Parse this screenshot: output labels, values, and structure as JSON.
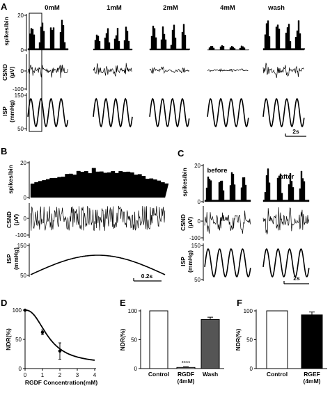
{
  "chart_data": [
    {
      "panel": "A",
      "type": "line",
      "conditions": [
        "0mM",
        "1mM",
        "2mM",
        "4mM",
        "wash"
      ],
      "spike_heights": [
        18,
        14,
        15,
        3,
        19
      ],
      "csnd_amplitudes": [
        55,
        50,
        25,
        10,
        55
      ],
      "rows": [
        {
          "ylabel": "spikes/bin",
          "ticks": [
            "20",
            "0"
          ],
          "ylim": [
            0,
            20
          ]
        },
        {
          "ylabel": "CSND\n(μV)",
          "ticks": [
            "0",
            "-100"
          ],
          "ylim": [
            -100,
            100
          ]
        },
        {
          "ylabel": "ISP\n(mmHg)",
          "ticks": [
            "150",
            "50"
          ],
          "ylim": [
            50,
            150
          ]
        }
      ],
      "scalebar": "2s"
    },
    {
      "panel": "B",
      "type": "line",
      "rows": [
        {
          "ylabel": "spikes/bin",
          "ticks": [
            "20",
            "0"
          ],
          "ylim": [
            0,
            20
          ]
        },
        {
          "ylabel": "CSND\n(μV)",
          "ticks": [
            "0",
            "-100"
          ],
          "ylim": [
            -100,
            100
          ]
        },
        {
          "ylabel": "ISP\n(mmHg)",
          "ticks": [
            "150",
            "50"
          ],
          "ylim": [
            50,
            150
          ]
        }
      ],
      "scalebar": "0.2s"
    },
    {
      "panel": "C",
      "type": "line",
      "conditions": [
        "before",
        "after"
      ],
      "rows": [
        {
          "ylabel": "spikes/bin",
          "ticks": [
            "20",
            "0"
          ],
          "ylim": [
            0,
            20
          ]
        },
        {
          "ylabel": "CSND\n(μV)",
          "ticks": [
            "0",
            "-100"
          ],
          "ylim": [
            -100,
            100
          ]
        },
        {
          "ylabel": "ISP\n(mmHg)",
          "ticks": [
            "150",
            "50"
          ],
          "ylim": [
            50,
            150
          ]
        }
      ],
      "scalebar": "2s"
    },
    {
      "panel": "D",
      "type": "scatter",
      "xlabel": "RGDF Concentration(mM)",
      "ylabel": "NDR(%)",
      "xlim": [
        0,
        4
      ],
      "ylim": [
        0,
        100
      ],
      "xticks": [
        "0",
        "1",
        "2",
        "3",
        "4"
      ],
      "yticks": [
        "0",
        "50",
        "100"
      ],
      "points": [
        {
          "x": 0,
          "y": 100,
          "err": 0
        },
        {
          "x": 1,
          "y": 62,
          "err": 4
        },
        {
          "x": 2,
          "y": 30,
          "err": 14
        }
      ],
      "fit": "sigmoid"
    },
    {
      "panel": "E",
      "type": "bar",
      "ylabel": "NDR(%)",
      "ylim": [
        0,
        100
      ],
      "yticks": [
        "0",
        "50",
        "100"
      ],
      "categories": [
        "Control",
        "RGDF\n(4mM)",
        "Wash"
      ],
      "values": [
        100,
        2,
        85
      ],
      "errors": [
        0,
        1,
        4
      ],
      "fills": [
        "#ffffff",
        "#ffffff",
        "#555555"
      ],
      "annotation": "****"
    },
    {
      "panel": "F",
      "type": "bar",
      "ylabel": "NDR(%)",
      "ylim": [
        0,
        100
      ],
      "yticks": [
        "0",
        "50",
        "100"
      ],
      "categories": [
        "Control",
        "RGEF\n(4mM)"
      ],
      "values": [
        100,
        93
      ],
      "errors": [
        0,
        5
      ],
      "fills": [
        "#ffffff",
        "#000000"
      ]
    }
  ]
}
